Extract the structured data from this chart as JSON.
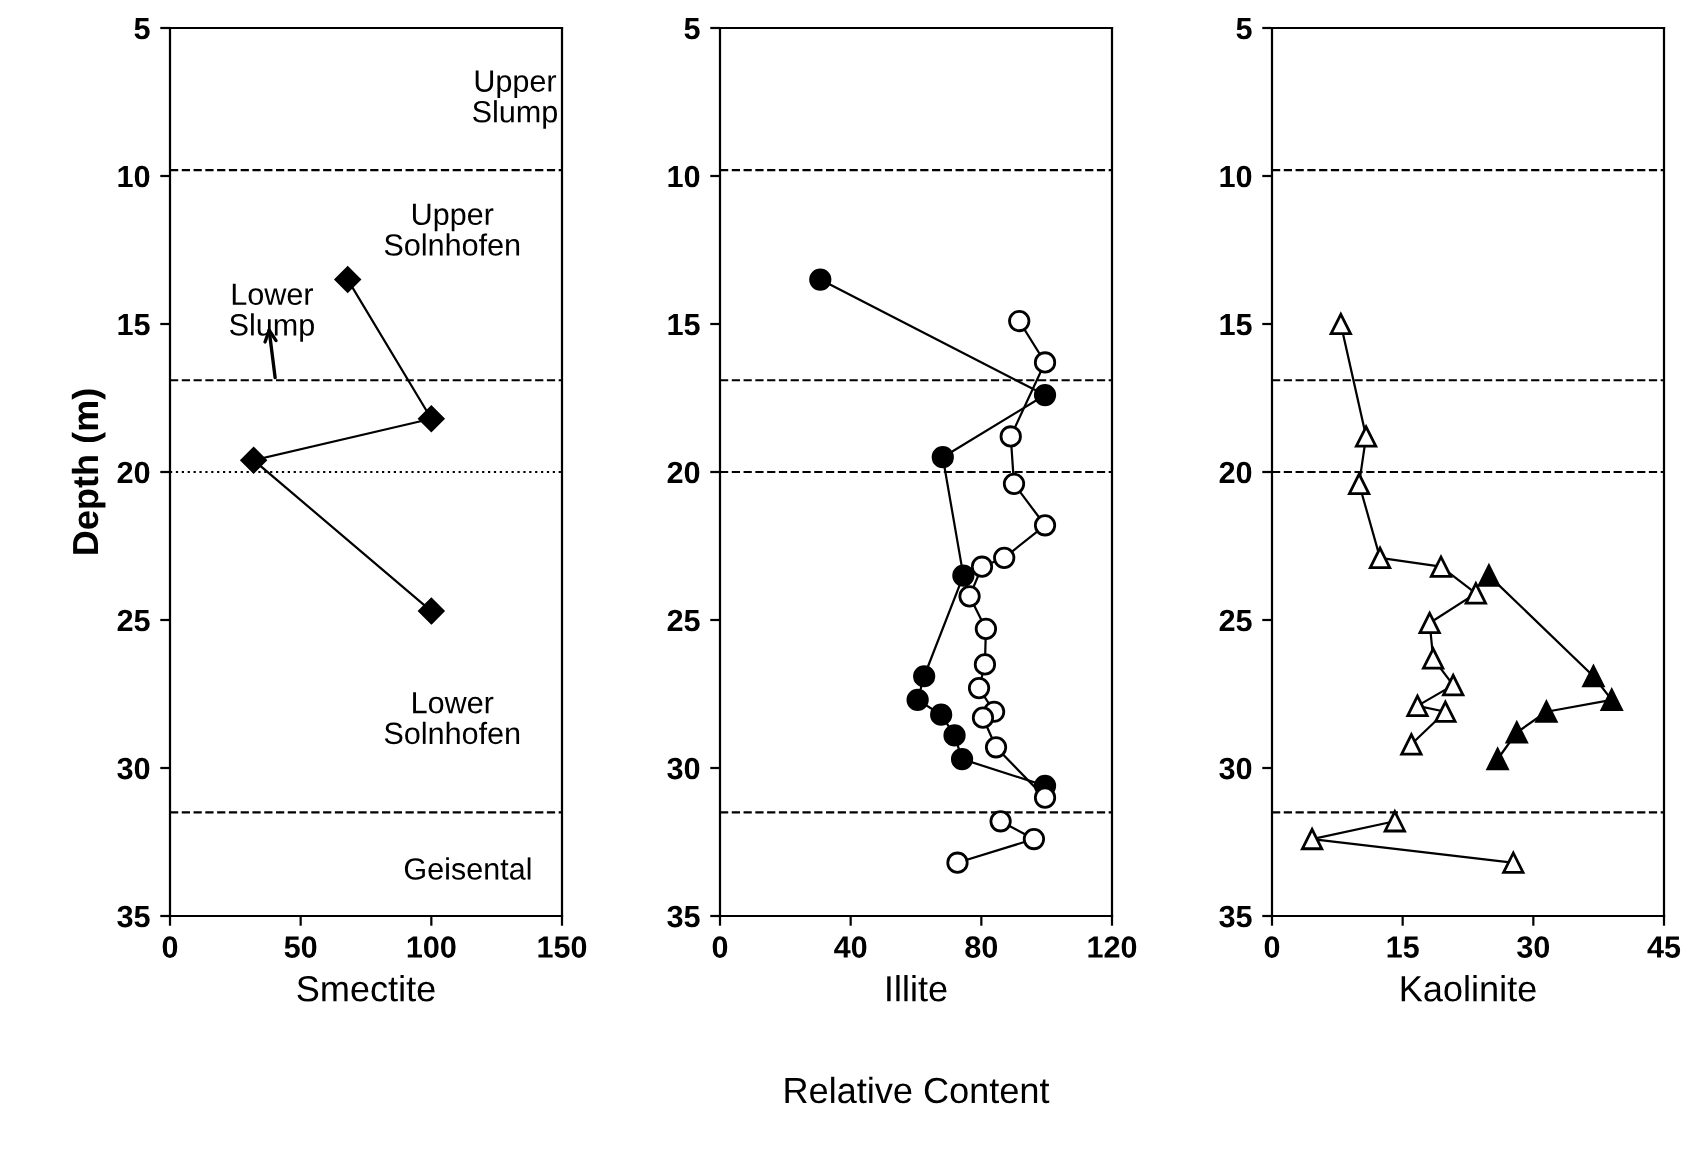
{
  "chart_data": [
    {
      "type": "line",
      "xlabel": "Smectite",
      "ylabel": "Depth (m)",
      "xlim": [
        0,
        150
      ],
      "xticks": [
        0,
        50,
        100,
        150
      ],
      "ylim": [
        35,
        5
      ],
      "yticks": [
        5,
        10,
        15,
        20,
        25,
        30,
        35
      ],
      "grid": false,
      "legend": false,
      "marker": "diamond",
      "line_style": "solid",
      "series": [
        {
          "color": "#000000",
          "x": [
            68,
            100,
            32,
            100
          ],
          "values": [
            13.5,
            18.2,
            19.6,
            24.7
          ]
        }
      ],
      "ref_lines": [
        {
          "axis": "y",
          "value": 9.8,
          "line_style": "dashed"
        },
        {
          "axis": "y",
          "value": 16.9,
          "line_style": "dashed"
        },
        {
          "axis": "y",
          "value": 20,
          "line_style": "dotted"
        },
        {
          "axis": "y",
          "value": 31.5,
          "line_style": "dashed"
        }
      ],
      "annotations": [
        "Upper\nSlump",
        "Upper\nSolnhofen",
        "Lower\nSlump",
        "Lower\nSolnhofen",
        "Geisental"
      ]
    },
    {
      "type": "line",
      "xlabel": "Illite",
      "xlim": [
        0,
        120
      ],
      "xticks": [
        0,
        40,
        80,
        120
      ],
      "ylim": [
        35,
        5
      ],
      "yticks": [
        5,
        10,
        15,
        20,
        25,
        30,
        35
      ],
      "grid": false,
      "legend": false,
      "marker": "circle",
      "line_style": "solid",
      "series": [
        {
          "color": "#000000",
          "x": [
            30.7,
            99.5,
            68.2,
            74.5,
            62.5,
            60.5,
            67.7,
            71.8,
            74.1,
            99.5
          ],
          "values": [
            13.5,
            17.4,
            19.5,
            23.5,
            26.9,
            27.7,
            28.2,
            28.9,
            29.7,
            30.6
          ]
        },
        {
          "color": "#ffffff",
          "x": [
            91.6,
            99.5,
            89,
            90,
            99.5,
            87,
            80.2,
            76.4,
            81.4,
            81.1,
            79.3,
            83.9,
            80.5,
            84.5,
            99.5,
            null,
            85.9,
            96.1,
            72.7
          ],
          "values": [
            14.9,
            16.3,
            18.8,
            20.4,
            21.8,
            22.9,
            23.2,
            24.2,
            25.3,
            26.5,
            27.3,
            28.1,
            28.3,
            29.3,
            31.0,
            null,
            31.8,
            32.4,
            33.2
          ]
        }
      ],
      "ref_lines": [
        {
          "axis": "y",
          "value": 9.8,
          "line_style": "dashed"
        },
        {
          "axis": "y",
          "value": 16.9,
          "line_style": "dashed"
        },
        {
          "axis": "y",
          "value": 20,
          "line_style": "dashed"
        },
        {
          "axis": "y",
          "value": 31.5,
          "line_style": "dashed"
        }
      ],
      "annotations": [
        "Relative Content"
      ]
    },
    {
      "type": "line",
      "xlabel": "Kaolinite",
      "xlim": [
        0,
        45
      ],
      "xticks": [
        0,
        15,
        30,
        45
      ],
      "ylim": [
        35,
        5
      ],
      "yticks": [
        5,
        10,
        15,
        20,
        25,
        30,
        35
      ],
      "grid": false,
      "legend": false,
      "marker": "triangle",
      "line_style": "solid",
      "series": [
        {
          "color": "#ffffff",
          "x": [
            7.9,
            10.8,
            10.0,
            12.4,
            19.4,
            23.4,
            18.1,
            18.5,
            20.8,
            16.7,
            19.9,
            16.0,
            null,
            14.1,
            4.6,
            27.7
          ],
          "values": [
            15.0,
            18.8,
            20.4,
            22.9,
            23.2,
            24.1,
            25.1,
            26.3,
            27.2,
            27.9,
            28.1,
            29.2,
            null,
            31.8,
            32.4,
            33.2
          ]
        },
        {
          "color": "#000000",
          "x": [
            24.9,
            36.9,
            39.0,
            31.5,
            28.1,
            25.9
          ],
          "values": [
            23.5,
            26.9,
            27.7,
            28.1,
            28.8,
            29.7
          ]
        }
      ],
      "ref_lines": [
        {
          "axis": "y",
          "value": 9.8,
          "line_style": "dashed"
        },
        {
          "axis": "y",
          "value": 16.9,
          "line_style": "dashed"
        },
        {
          "axis": "y",
          "value": 20,
          "line_style": "dashed"
        },
        {
          "axis": "y",
          "value": 31.5,
          "line_style": "dashed"
        }
      ]
    }
  ]
}
